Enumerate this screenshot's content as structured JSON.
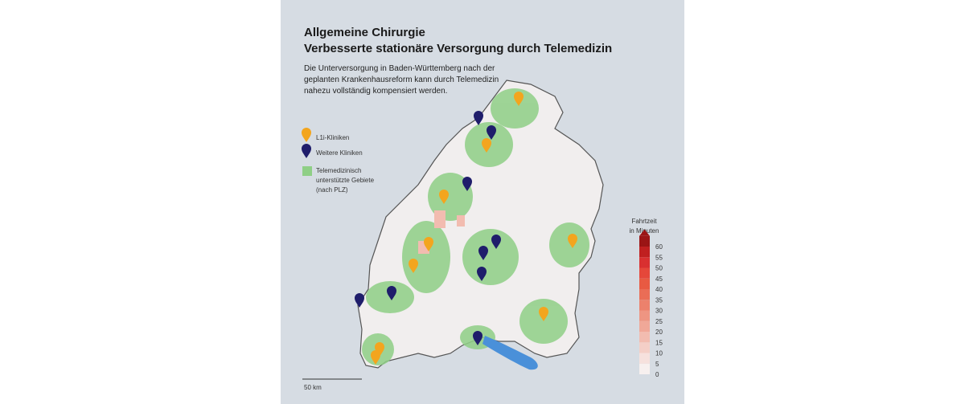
{
  "header": {
    "title": [
      "Allgemeine Chirurgie",
      "Verbesserte stationäre Versorgung durch Telemedizin"
    ],
    "description": [
      "Die Unterversorgung in Baden-Württemberg nach der",
      "geplanten Krankenhausreform kann durch Telemedizin",
      "nahezu vollständig kompensiert werden."
    ]
  },
  "legend": {
    "items": [
      {
        "lines": [
          "L1i-Kliniken"
        ]
      },
      {
        "lines": [
          "Weitere Kliniken"
        ]
      },
      {
        "lines": [
          "Telemedizinisch",
          "unterstützte Gebiete",
          "(nach PLZ)"
        ]
      }
    ]
  },
  "scale": {
    "title": [
      "Fahrtzeit",
      "in Minuten"
    ],
    "ticks": [
      0,
      5,
      10,
      15,
      20,
      25,
      30,
      35,
      40,
      45,
      50,
      55,
      60
    ],
    "colors": [
      "#f7f0ef",
      "#f6e1dd",
      "#f4cfc7",
      "#f2bcb0",
      "#f0a898",
      "#ee9582",
      "#ec816c",
      "#ea6d56",
      "#e85a42",
      "#e5473a",
      "#d93030",
      "#c02020",
      "#9b1515"
    ]
  },
  "scalebar": {
    "label": "50 km"
  }
}
